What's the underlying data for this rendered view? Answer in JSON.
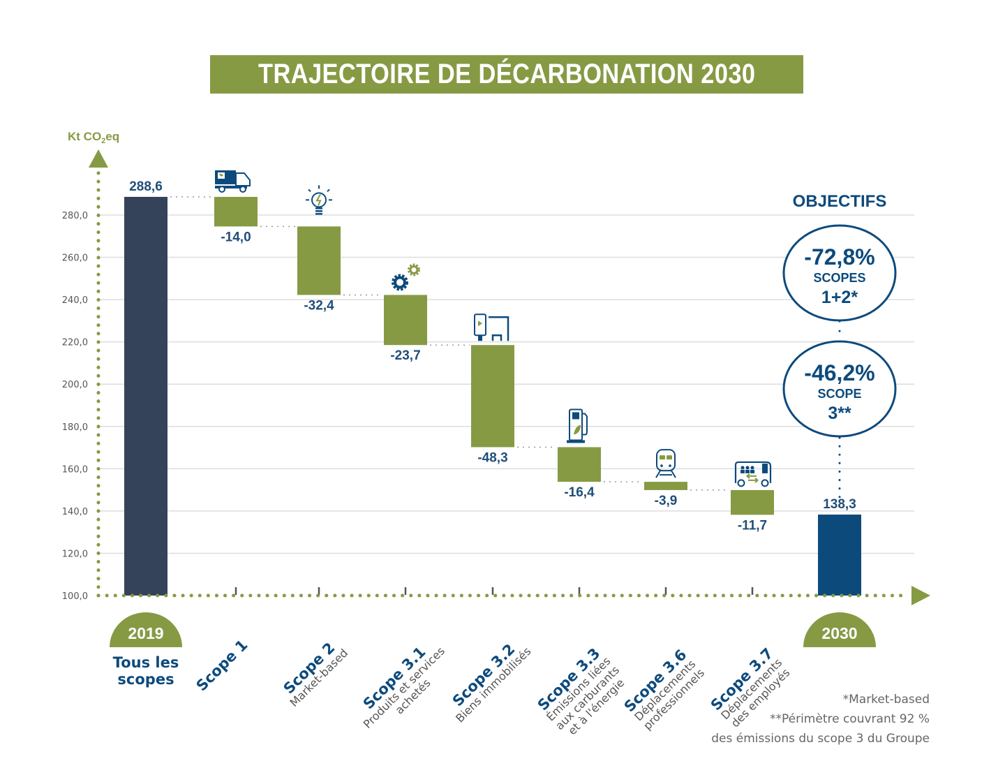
{
  "title": "TRAJECTOIRE DE DÉCARBONATION 2030",
  "colors": {
    "green": "#869a44",
    "navy": "#34435a",
    "blue": "#0d4a7c",
    "grid": "#dddddd",
    "connector": "#999999"
  },
  "chart_data": {
    "type": "bar",
    "subtype": "waterfall",
    "title": "TRAJECTOIRE DE DÉCARBONATION 2030",
    "ylabel": "Kt CO2eq",
    "ylabel_parts": {
      "main": "Kt CO",
      "sub": "2",
      "tail": "eq"
    },
    "xlabel": "",
    "ylim": [
      100,
      290
    ],
    "yticks": [
      100,
      120,
      140,
      160,
      180,
      200,
      220,
      240,
      260,
      280
    ],
    "ytick_labels": [
      "100,0",
      "120,0",
      "140,0",
      "160,0",
      "180,0",
      "200,0",
      "220,0",
      "240,0",
      "260,0",
      "280,0"
    ],
    "grid": true,
    "categories": [
      {
        "key": "2019",
        "year_badge": "2019",
        "title_lines": [
          "Tous les",
          "scopes"
        ],
        "sub_lines": [],
        "kind": "total",
        "value": 288.6,
        "label": "288,6",
        "icon": null
      },
      {
        "key": "scope1",
        "title_lines": [
          "Scope 1"
        ],
        "sub_lines": [],
        "kind": "delta",
        "value": -14.0,
        "label": "-14,0",
        "icon": "truck-icon"
      },
      {
        "key": "scope2",
        "title_lines": [
          "Scope 2"
        ],
        "sub_lines": [
          "Market-based"
        ],
        "kind": "delta",
        "value": -32.4,
        "label": "-32,4",
        "icon": "lightbulb-icon"
      },
      {
        "key": "scope31",
        "title_lines": [
          "Scope 3.1"
        ],
        "sub_lines": [
          "Produits et services",
          "achetés"
        ],
        "kind": "delta",
        "value": -23.7,
        "label": "-23,7",
        "icon": "gears-icon"
      },
      {
        "key": "scope32",
        "title_lines": [
          "Scope 3.2"
        ],
        "sub_lines": [
          "Biens immobilisés"
        ],
        "kind": "delta",
        "value": -48.3,
        "label": "-48,3",
        "icon": "billboard-bench-icon"
      },
      {
        "key": "scope33",
        "title_lines": [
          "Scope 3.3"
        ],
        "sub_lines": [
          "Émissions liées",
          "aux carburants",
          "et à l'énergie"
        ],
        "kind": "delta",
        "value": -16.4,
        "label": "-16,4",
        "icon": "fuel-pump-icon"
      },
      {
        "key": "scope36",
        "title_lines": [
          "Scope 3.6"
        ],
        "sub_lines": [
          "Déplacements",
          "professionnels"
        ],
        "kind": "delta",
        "value": -3.9,
        "label": "-3,9",
        "icon": "train-icon"
      },
      {
        "key": "scope37",
        "title_lines": [
          "Scope 3.7"
        ],
        "sub_lines": [
          "Déplacements",
          "des employés"
        ],
        "kind": "delta",
        "value": -11.7,
        "label": "-11,7",
        "icon": "shuttle-bus-icon"
      },
      {
        "key": "2030",
        "year_badge": "2030",
        "title_lines": [],
        "sub_lines": [],
        "kind": "total",
        "value": 138.3,
        "label": "138,3",
        "icon": null
      }
    ],
    "objectives": {
      "title": "OBJECTIFS",
      "items": [
        {
          "pct": "-72,8%",
          "line1": "SCOPES",
          "line2": "1+2*"
        },
        {
          "pct": "-46,2%",
          "line1": "SCOPE",
          "line2": "3**"
        }
      ]
    }
  },
  "footnotes": [
    "*Market-based",
    "**Périmètre couvrant 92 %",
    "des émissions du scope 3 du Groupe"
  ]
}
